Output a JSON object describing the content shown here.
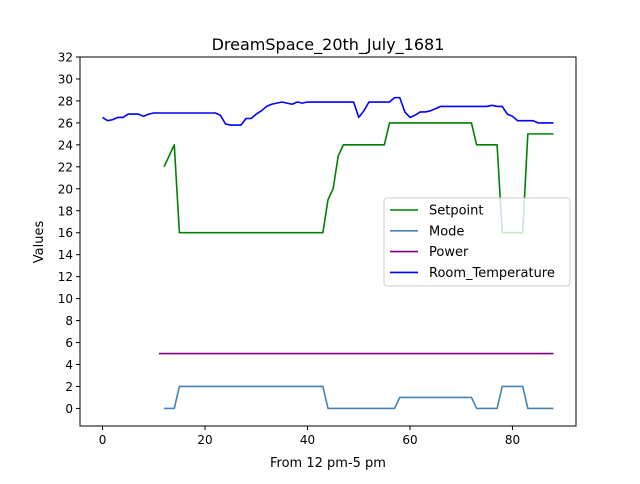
{
  "chart_data": {
    "type": "line",
    "title": "DreamSpace_20th_July_1681",
    "xlabel": "From 12 pm-5 pm",
    "ylabel": "Values",
    "xlim": [
      -4.4,
      92.4
    ],
    "ylim": [
      -1.6,
      32
    ],
    "x_ticks": [
      0,
      20,
      40,
      60,
      80
    ],
    "y_ticks": [
      0,
      2,
      4,
      6,
      8,
      10,
      12,
      14,
      16,
      18,
      20,
      22,
      24,
      26,
      28,
      30,
      32
    ],
    "grid": false,
    "legend_position": "center-right",
    "series": [
      {
        "name": "Setpoint",
        "color": "#008000",
        "points": [
          [
            12,
            22
          ],
          [
            14,
            24
          ],
          [
            15,
            16
          ],
          [
            43,
            16
          ],
          [
            44,
            19
          ],
          [
            45,
            20
          ],
          [
            46,
            23
          ],
          [
            47,
            24
          ],
          [
            55,
            24
          ],
          [
            56,
            26
          ],
          [
            72,
            26
          ],
          [
            73,
            24
          ],
          [
            77,
            24
          ],
          [
            78,
            16
          ],
          [
            82,
            16
          ],
          [
            83,
            25
          ],
          [
            88,
            25
          ]
        ]
      },
      {
        "name": "Mode",
        "color": "#4682b4",
        "points": [
          [
            12,
            0
          ],
          [
            14,
            0
          ],
          [
            15,
            2
          ],
          [
            43,
            2
          ],
          [
            44,
            0
          ],
          [
            57,
            0
          ],
          [
            58,
            1
          ],
          [
            72,
            1
          ],
          [
            73,
            0
          ],
          [
            77,
            0
          ],
          [
            78,
            2
          ],
          [
            82,
            2
          ],
          [
            83,
            0
          ],
          [
            88,
            0
          ]
        ]
      },
      {
        "name": "Power",
        "color": "#800080",
        "points": [
          [
            11,
            5
          ],
          [
            88,
            5
          ]
        ]
      },
      {
        "name": "Room_Temperature",
        "color": "#0000ff",
        "points": [
          [
            0,
            26.5
          ],
          [
            1,
            26.2
          ],
          [
            2,
            26.3
          ],
          [
            3,
            26.5
          ],
          [
            4,
            26.5
          ],
          [
            5,
            26.8
          ],
          [
            6,
            26.8
          ],
          [
            7,
            26.8
          ],
          [
            8,
            26.6
          ],
          [
            9,
            26.8
          ],
          [
            10,
            26.9
          ],
          [
            12,
            26.9
          ],
          [
            14,
            26.9
          ],
          [
            16,
            26.9
          ],
          [
            18,
            26.9
          ],
          [
            20,
            26.9
          ],
          [
            22,
            26.9
          ],
          [
            23,
            26.7
          ],
          [
            24,
            25.9
          ],
          [
            25,
            25.8
          ],
          [
            27,
            25.8
          ],
          [
            28,
            26.4
          ],
          [
            29,
            26.4
          ],
          [
            30,
            26.8
          ],
          [
            31,
            27.1
          ],
          [
            32,
            27.5
          ],
          [
            33,
            27.7
          ],
          [
            34,
            27.8
          ],
          [
            35,
            27.9
          ],
          [
            36,
            27.8
          ],
          [
            37,
            27.7
          ],
          [
            38,
            27.9
          ],
          [
            39,
            27.8
          ],
          [
            40,
            27.9
          ],
          [
            49,
            27.9
          ],
          [
            50,
            26.5
          ],
          [
            51,
            27.1
          ],
          [
            52,
            27.9
          ],
          [
            53,
            27.9
          ],
          [
            56,
            27.9
          ],
          [
            57,
            28.3
          ],
          [
            58,
            28.3
          ],
          [
            59,
            27.0
          ],
          [
            60,
            26.5
          ],
          [
            61,
            26.7
          ],
          [
            62,
            27.0
          ],
          [
            63,
            27.0
          ],
          [
            64,
            27.1
          ],
          [
            65,
            27.3
          ],
          [
            66,
            27.5
          ],
          [
            72,
            27.5
          ],
          [
            75,
            27.5
          ],
          [
            76,
            27.6
          ],
          [
            77,
            27.5
          ],
          [
            78,
            27.5
          ],
          [
            79,
            26.8
          ],
          [
            80,
            26.6
          ],
          [
            81,
            26.2
          ],
          [
            84,
            26.2
          ],
          [
            85,
            26.0
          ],
          [
            86,
            26.0
          ],
          [
            88,
            26.0
          ]
        ]
      }
    ]
  }
}
